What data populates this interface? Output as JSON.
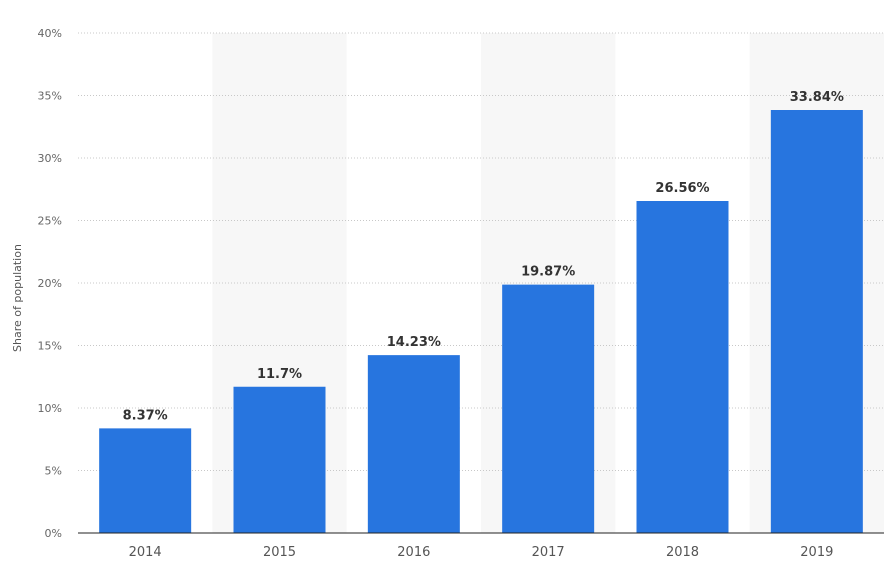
{
  "chart_data": {
    "type": "bar",
    "categories": [
      "2014",
      "2015",
      "2016",
      "2017",
      "2018",
      "2019"
    ],
    "values": [
      8.37,
      11.7,
      14.23,
      19.87,
      26.56,
      33.84
    ],
    "data_labels": [
      "8.37%",
      "11.7%",
      "14.23%",
      "19.87%",
      "26.56%",
      "33.84%"
    ],
    "ylabel": "Share of population",
    "xlabel": "",
    "ylim": [
      0,
      40
    ],
    "yticks": [
      0,
      5,
      10,
      15,
      20,
      25,
      30,
      35,
      40
    ],
    "ytick_labels": [
      "0%",
      "5%",
      "10%",
      "15%",
      "20%",
      "25%",
      "30%",
      "35%",
      "40%"
    ],
    "grid": true,
    "legend": "none",
    "colors": {
      "bar": "#2775df",
      "grid": "#c8c8c8",
      "band": "#f7f7f7",
      "axis": "#222222"
    }
  }
}
